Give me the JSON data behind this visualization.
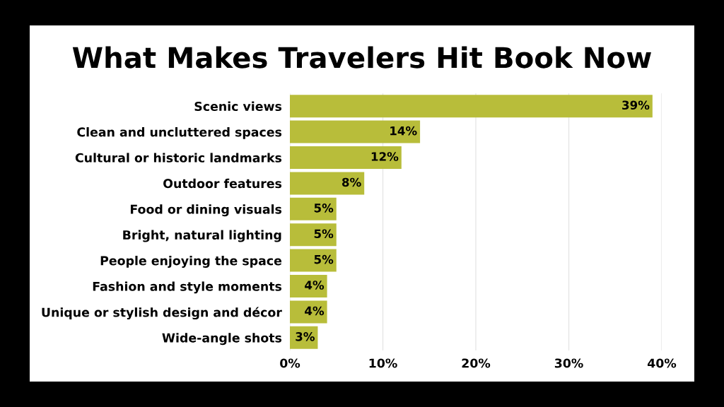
{
  "chart_data": {
    "type": "bar",
    "orientation": "horizontal",
    "title": "What Makes Travelers Hit Book Now",
    "categories": [
      "Scenic views",
      "Clean and uncluttered spaces",
      "Cultural or historic landmarks",
      "Outdoor features",
      "Food or dining visuals",
      "Bright, natural lighting",
      "People enjoying the space",
      "Fashion and style moments",
      "Unique or stylish design and décor",
      "Wide-angle shots"
    ],
    "values": [
      39,
      14,
      12,
      8,
      5,
      5,
      5,
      4,
      4,
      3
    ],
    "value_labels": [
      "39%",
      "14%",
      "12%",
      "8%",
      "5%",
      "5%",
      "5%",
      "4%",
      "4%",
      "3%"
    ],
    "color": "#b8bd3a",
    "xlim": [
      0,
      40
    ],
    "xticks": [
      {
        "value": 0,
        "label": "0%"
      },
      {
        "value": 10,
        "label": "10%"
      },
      {
        "value": 20,
        "label": "20%"
      },
      {
        "value": 30,
        "label": "30%"
      },
      {
        "value": 40,
        "label": "40%"
      }
    ],
    "grid": "x"
  }
}
